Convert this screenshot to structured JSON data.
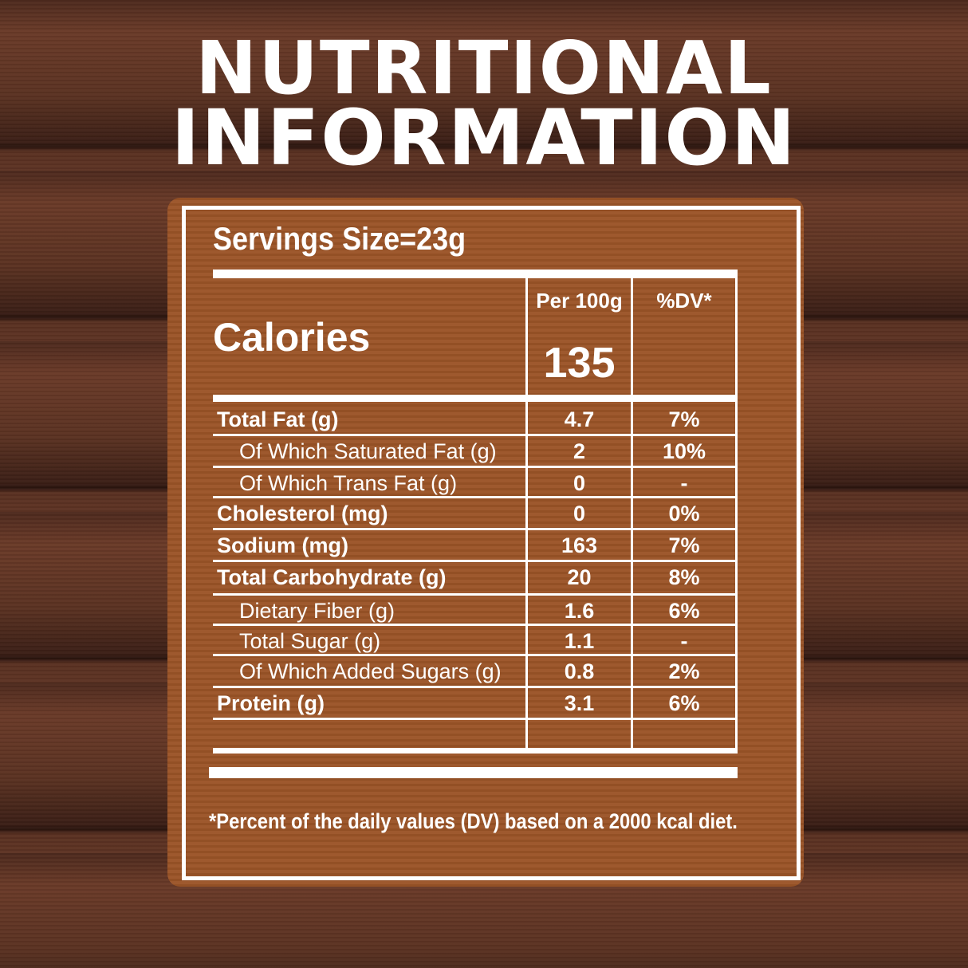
{
  "title": {
    "line1": "NUTRITIONAL",
    "line2": "INFORMATION"
  },
  "serving_size": "Servings Size=23g",
  "header": {
    "per": "Per 100g",
    "dv": "%DV*",
    "calories_label": "Calories",
    "calories_value": "135"
  },
  "rows": [
    {
      "label": "Total Fat (g)",
      "per": "4.7",
      "dv": "7%",
      "bold": true,
      "indent": 0
    },
    {
      "label": "Of Which Saturated Fat (g)",
      "per": "2",
      "dv": "10%",
      "bold": false,
      "indent": 1
    },
    {
      "label": "Of Which Trans Fat (g)",
      "per": "0",
      "dv": "-",
      "bold": false,
      "indent": 1
    },
    {
      "label": "Cholesterol (mg)",
      "per": "0",
      "dv": "0%",
      "bold": true,
      "indent": 0
    },
    {
      "label": "Sodium (mg)",
      "per": "163",
      "dv": "7%",
      "bold": true,
      "indent": 0
    },
    {
      "label": "Total Carbohydrate (g)",
      "per": "20",
      "dv": "8%",
      "bold": true,
      "indent": 0
    },
    {
      "label": "Dietary Fiber (g)",
      "per": "1.6",
      "dv": "6%",
      "bold": false,
      "indent": 1
    },
    {
      "label": "Total Sugar (g)",
      "per": "1.1",
      "dv": "-",
      "bold": false,
      "indent": 1
    },
    {
      "label": "Of Which Added Sugars (g)",
      "per": "0.8",
      "dv": "2%",
      "bold": false,
      "indent": 1
    },
    {
      "label": "Protein (g)",
      "per": "3.1",
      "dv": "6%",
      "bold": true,
      "indent": 0
    }
  ],
  "footnote": "*Percent of the daily values (DV) based on a 2000 kcal diet.",
  "colors": {
    "panel": "#9b5427",
    "text": "#ffffff",
    "wood": "#5a3122"
  }
}
